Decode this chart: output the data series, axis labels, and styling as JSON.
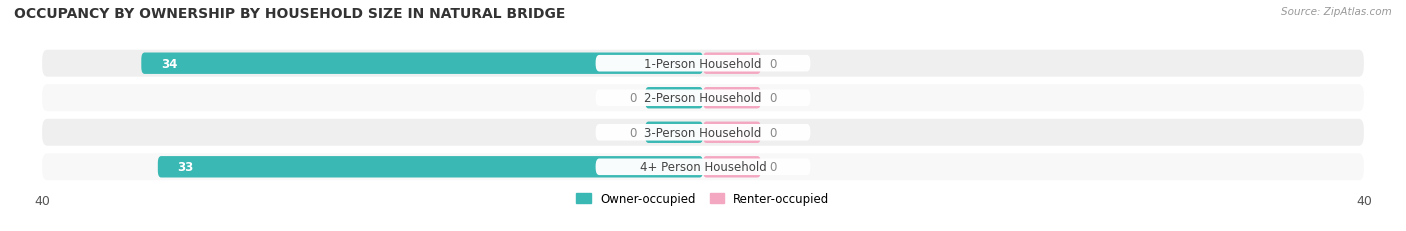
{
  "title": "OCCUPANCY BY OWNERSHIP BY HOUSEHOLD SIZE IN NATURAL BRIDGE",
  "source": "Source: ZipAtlas.com",
  "categories": [
    "1-Person Household",
    "2-Person Household",
    "3-Person Household",
    "4+ Person Household"
  ],
  "owner_values": [
    34,
    0,
    0,
    33
  ],
  "renter_values": [
    0,
    0,
    0,
    0
  ],
  "owner_color": "#3ab8b3",
  "renter_color": "#f4a7c0",
  "row_bg_color": "#efefef",
  "row_bg_alt": "#f8f8f8",
  "xlim": [
    -40,
    40
  ],
  "x_ticks": [
    -40,
    40
  ],
  "bar_height": 0.62,
  "renter_stub": 3.5,
  "owner_stub": 3.5,
  "fig_width": 14.06,
  "fig_height": 2.32,
  "title_fontsize": 10,
  "label_fontsize": 8.5,
  "tick_fontsize": 9,
  "legend_fontsize": 8.5,
  "value_fontsize": 8.5
}
